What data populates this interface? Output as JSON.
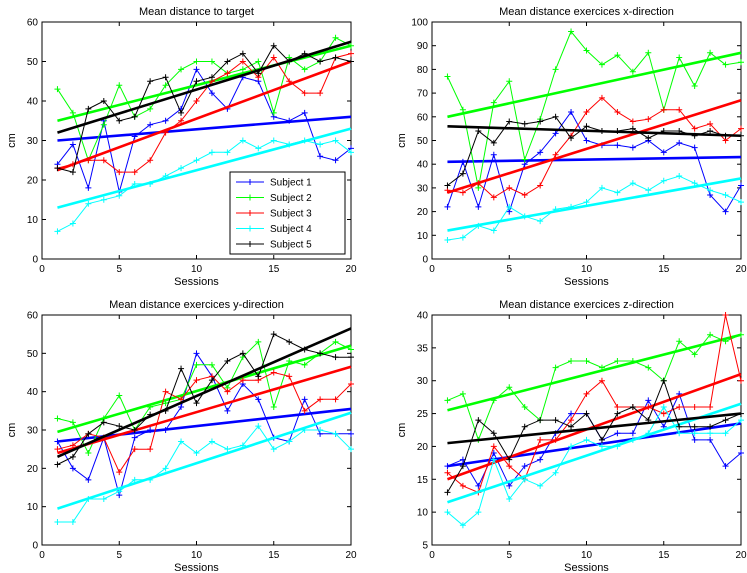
{
  "chart_data": [
    {
      "type": "line",
      "title": "Mean distance to target",
      "xlabel": "Sessions",
      "ylabel": "cm",
      "xlim": [
        0,
        20
      ],
      "ylim": [
        0,
        60
      ],
      "xticks": [
        0,
        5,
        10,
        15,
        20
      ],
      "yticks": [
        0,
        10,
        20,
        30,
        40,
        50,
        60
      ],
      "show_legend": true,
      "series": [
        {
          "name": "Subject 1",
          "color": "#0000ff",
          "values": [
            24,
            29,
            18,
            35,
            17,
            31,
            34,
            35,
            38,
            48,
            42,
            38,
            46,
            45,
            36,
            35,
            37,
            26,
            25,
            28
          ],
          "trend": [
            30,
            36
          ]
        },
        {
          "name": "Subject 2",
          "color": "#00ff00",
          "values": [
            43,
            37,
            25,
            34,
            44,
            36,
            38,
            44,
            48,
            50,
            50,
            47,
            48,
            50,
            37,
            51,
            48,
            50,
            56,
            54
          ],
          "trend": [
            35,
            54
          ]
        },
        {
          "name": "Subject 3",
          "color": "#ff0000",
          "values": [
            23,
            24,
            25,
            25,
            22,
            22,
            25,
            32,
            35,
            40,
            45,
            47,
            50,
            46,
            51,
            45,
            42,
            42,
            51,
            52
          ],
          "trend": [
            22.5,
            50
          ]
        },
        {
          "name": "Subject 4",
          "color": "#00ffff",
          "values": [
            7,
            9,
            14,
            15,
            16,
            19,
            19,
            21,
            23,
            25,
            27,
            27,
            30,
            28,
            30,
            29,
            30,
            29,
            30,
            27
          ],
          "trend": [
            13,
            33
          ]
        },
        {
          "name": "Subject 5",
          "color": "#000000",
          "values": [
            23,
            22,
            38,
            40,
            35,
            36,
            45,
            46,
            37,
            45,
            46,
            50,
            52,
            47,
            54,
            50,
            52,
            50,
            51,
            50
          ],
          "trend": [
            32,
            55
          ]
        }
      ]
    },
    {
      "type": "line",
      "title": "Mean distance exercices x-direction",
      "xlabel": "Sessions",
      "ylabel": "cm",
      "xlim": [
        0,
        20
      ],
      "ylim": [
        0,
        100
      ],
      "xticks": [
        0,
        5,
        10,
        15,
        20
      ],
      "yticks": [
        0,
        10,
        20,
        30,
        40,
        50,
        60,
        70,
        80,
        90,
        100
      ],
      "show_legend": false,
      "series": [
        {
          "name": "Subject 1",
          "color": "#0000ff",
          "values": [
            22,
            41,
            22,
            44,
            20,
            40,
            45,
            53,
            62,
            50,
            48,
            48,
            47,
            50,
            45,
            49,
            47,
            27,
            20,
            31
          ],
          "trend": [
            41,
            43
          ]
        },
        {
          "name": "Subject 2",
          "color": "#00ff00",
          "values": [
            77,
            63,
            30,
            66,
            75,
            42,
            59,
            80,
            96,
            88,
            82,
            86,
            79,
            87,
            63,
            85,
            73,
            87,
            82,
            83
          ],
          "trend": [
            60,
            87
          ]
        },
        {
          "name": "Subject 3",
          "color": "#ff0000",
          "values": [
            29,
            28,
            32,
            26,
            30,
            27,
            31,
            44,
            52,
            62,
            68,
            62,
            58,
            59,
            63,
            63,
            55,
            57,
            50,
            55
          ],
          "trend": [
            28,
            67
          ]
        },
        {
          "name": "Subject 4",
          "color": "#00ffff",
          "values": [
            8,
            9,
            14,
            12,
            22,
            18,
            16,
            21,
            22,
            24,
            30,
            28,
            32,
            29,
            33,
            35,
            32,
            29,
            27,
            24
          ],
          "trend": [
            12,
            34
          ]
        },
        {
          "name": "Subject 5",
          "color": "#000000",
          "values": [
            31,
            36,
            54,
            49,
            58,
            57,
            58,
            60,
            51,
            56,
            54,
            54,
            55,
            51,
            54,
            54,
            52,
            54,
            52,
            52
          ],
          "trend": [
            56,
            52
          ]
        }
      ]
    },
    {
      "type": "line",
      "title": "Mean distance exercices y-direction",
      "xlabel": "Sessions",
      "ylabel": "cm",
      "xlim": [
        0,
        20
      ],
      "ylim": [
        0,
        60
      ],
      "xticks": [
        0,
        5,
        10,
        15,
        20
      ],
      "yticks": [
        0,
        10,
        20,
        30,
        40,
        50,
        60
      ],
      "show_legend": false,
      "series": [
        {
          "name": "Subject 1",
          "color": "#0000ff",
          "values": [
            27,
            20,
            17,
            28,
            13,
            28,
            30,
            30,
            36,
            50,
            44,
            35,
            42,
            38,
            28,
            27,
            38,
            29,
            29,
            29
          ],
          "trend": [
            27,
            35.5
          ]
        },
        {
          "name": "Subject 2",
          "color": "#00ff00",
          "values": [
            33,
            32,
            24,
            33,
            39,
            30,
            36,
            37,
            38,
            47,
            47,
            41,
            49,
            53,
            36,
            48,
            47,
            50,
            53,
            51
          ],
          "trend": [
            29.5,
            52
          ]
        },
        {
          "name": "Subject 3",
          "color": "#ff0000",
          "values": [
            25,
            26,
            29,
            28,
            19,
            25,
            25,
            40,
            38,
            43,
            44,
            40,
            43,
            43,
            45,
            44,
            35,
            38,
            38,
            42
          ],
          "trend": [
            24,
            46.5
          ]
        },
        {
          "name": "Subject 4",
          "color": "#00ffff",
          "values": [
            6,
            6,
            12,
            12,
            14,
            17,
            17,
            20,
            27,
            24,
            27,
            25,
            26,
            31,
            25,
            27,
            30,
            30,
            29,
            25
          ],
          "trend": [
            9.5,
            34.5
          ]
        },
        {
          "name": "Subject 5",
          "color": "#000000",
          "values": [
            21,
            23,
            29,
            32,
            31,
            30,
            34,
            35,
            46,
            37,
            43,
            48,
            50,
            44,
            55,
            53,
            51,
            50,
            49,
            49
          ],
          "trend": [
            23,
            56.5
          ]
        }
      ]
    },
    {
      "type": "line",
      "title": "Mean distance exercices z-direction",
      "xlabel": "Sessions",
      "ylabel": "cm",
      "xlim": [
        0,
        20
      ],
      "ylim": [
        5,
        40
      ],
      "xticks": [
        0,
        5,
        10,
        15,
        20
      ],
      "yticks": [
        5,
        10,
        15,
        20,
        25,
        30,
        35,
        40
      ],
      "show_legend": false,
      "series": [
        {
          "name": "Subject 1",
          "color": "#0000ff",
          "values": [
            17,
            18,
            14,
            19,
            14,
            17,
            18,
            22,
            25,
            25,
            21,
            22,
            22,
            27,
            23,
            28,
            21,
            21,
            17,
            19
          ],
          "trend": [
            17,
            23.5
          ]
        },
        {
          "name": "Subject 2",
          "color": "#00ff00",
          "values": [
            27,
            28,
            21,
            27,
            29,
            26,
            24,
            32,
            33,
            33,
            32,
            33,
            33,
            32,
            30,
            36,
            34,
            37,
            36,
            37
          ],
          "trend": [
            25.5,
            37
          ]
        },
        {
          "name": "Subject 3",
          "color": "#ff0000",
          "values": [
            16,
            14,
            13,
            20,
            17,
            15,
            21,
            21,
            24,
            28,
            30,
            26,
            26,
            26,
            25,
            26,
            26,
            26,
            40,
            30
          ],
          "trend": [
            15,
            31
          ]
        },
        {
          "name": "Subject 4",
          "color": "#00ffff",
          "values": [
            10,
            8,
            10,
            18,
            12,
            15,
            14,
            16,
            20,
            21,
            20,
            20,
            21,
            22,
            26,
            22,
            22,
            22,
            22,
            24
          ],
          "trend": [
            11.5,
            26.5
          ]
        },
        {
          "name": "Subject 5",
          "color": "#000000",
          "values": [
            13,
            17,
            24,
            22,
            18,
            23,
            24,
            24,
            23,
            25,
            21,
            25,
            26,
            24,
            30,
            23,
            23,
            23,
            24,
            25
          ],
          "trend": [
            20.5,
            25
          ]
        }
      ]
    }
  ]
}
